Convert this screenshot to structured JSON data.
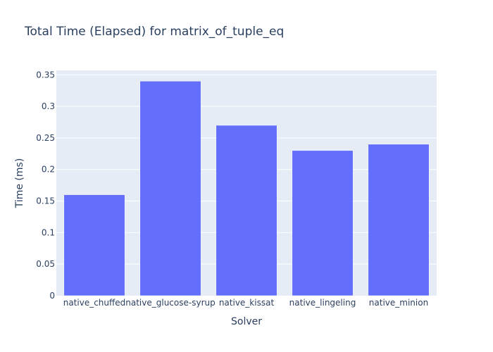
{
  "chart_data": {
    "type": "bar",
    "title": "Total Time (Elapsed) for matrix_of_tuple_eq",
    "xlabel": "Solver",
    "ylabel": "Time (ms)",
    "categories": [
      "native_chuffed",
      "native_glucose-syrup",
      "native_kissat",
      "native_lingeling",
      "native_minion"
    ],
    "values": [
      0.16,
      0.34,
      0.27,
      0.23,
      0.24
    ],
    "ylim": [
      0,
      0.357
    ],
    "yticks": [
      0,
      0.05,
      0.1,
      0.15,
      0.2,
      0.25,
      0.3,
      0.35
    ],
    "ytick_labels": [
      "0",
      "0.05",
      "0.1",
      "0.15",
      "0.2",
      "0.25",
      "0.3",
      "0.35"
    ],
    "grid": true,
    "legend": "none",
    "bar_color": "#636efa",
    "plot_background": "#e5ecf6"
  }
}
